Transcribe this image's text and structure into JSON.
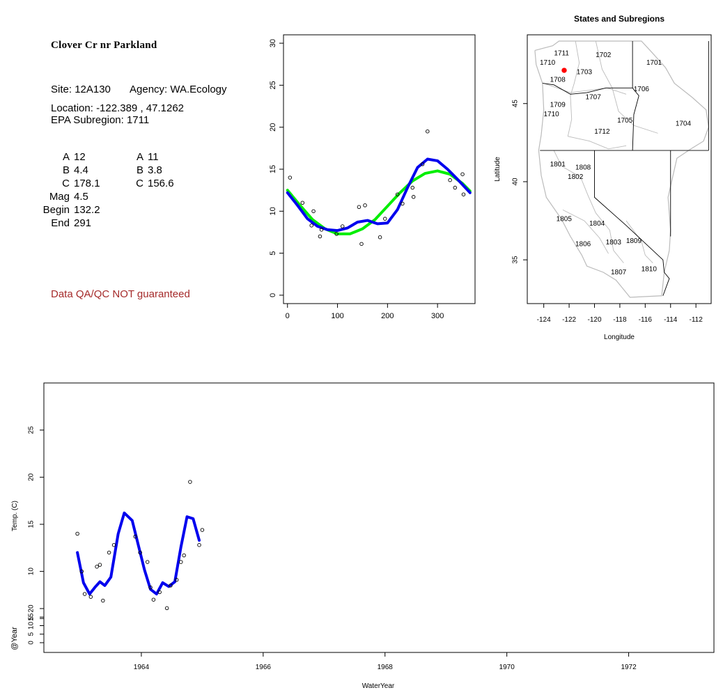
{
  "info": {
    "title": "Clover Cr nr Parkland",
    "site_label": "Site:",
    "site": "12A130",
    "agency_label": "Agency:",
    "agency": "WA.Ecology",
    "location_label": "Location:",
    "location": "-122.389 , 47.1262",
    "subregion_label": "EPA Subregion:",
    "subregion": "1711",
    "params_left": [
      {
        "key": "A",
        "value": "12"
      },
      {
        "key": "B",
        "value": "4.4"
      },
      {
        "key": "C",
        "value": "178.1"
      },
      {
        "key": "Mag",
        "value": "4.5"
      },
      {
        "key": "Begin",
        "value": "132.2"
      },
      {
        "key": "End",
        "value": "291"
      }
    ],
    "params_right": [
      {
        "key": "A",
        "value": "11"
      },
      {
        "key": "B",
        "value": "3.8"
      },
      {
        "key": "C",
        "value": "156.6"
      }
    ],
    "warning": "Data QA/QC NOT guaranteed"
  },
  "colors": {
    "green": "#00ee00",
    "blue": "#0000ee",
    "warning": "#a52a2a",
    "site_marker": "#ff0000",
    "boundary": "#bbbbbb"
  },
  "chart_data": [
    {
      "type": "scatter",
      "title": "",
      "xlabel": "",
      "ylabel": "",
      "xlim": [
        -8,
        375
      ],
      "ylim": [
        -1,
        31
      ],
      "xticks": [
        0,
        100,
        200,
        300
      ],
      "yticks": [
        0,
        5,
        10,
        15,
        20,
        25,
        30
      ],
      "points": [
        [
          5,
          14
        ],
        [
          30,
          11
        ],
        [
          48,
          8.3
        ],
        [
          52,
          10
        ],
        [
          65,
          7
        ],
        [
          68,
          7.8
        ],
        [
          98,
          7.3
        ],
        [
          110,
          8.2
        ],
        [
          143,
          10.5
        ],
        [
          148,
          6.1
        ],
        [
          155,
          10.7
        ],
        [
          185,
          6.9
        ],
        [
          195,
          9.1
        ],
        [
          220,
          12
        ],
        [
          230,
          10.9
        ],
        [
          250,
          12.8
        ],
        [
          252,
          11.7
        ],
        [
          270,
          15.6
        ],
        [
          280,
          19.5
        ],
        [
          325,
          13.7
        ],
        [
          335,
          12.8
        ],
        [
          350,
          14.4
        ],
        [
          352,
          12
        ]
      ],
      "series": [
        {
          "color": "#00ee00",
          "values": [
            [
              0,
              12.5
            ],
            [
              25,
              10.7
            ],
            [
              50,
              9
            ],
            [
              75,
              7.9
            ],
            [
              100,
              7.3
            ],
            [
              125,
              7.3
            ],
            [
              150,
              7.9
            ],
            [
              175,
              9
            ],
            [
              200,
              10.6
            ],
            [
              225,
              12.2
            ],
            [
              250,
              13.6
            ],
            [
              275,
              14.5
            ],
            [
              300,
              14.8
            ],
            [
              325,
              14.4
            ],
            [
              350,
              13.3
            ],
            [
              365,
              12.4
            ]
          ]
        },
        {
          "color": "#0000ee",
          "values": [
            [
              0,
              12.2
            ],
            [
              20,
              10.7
            ],
            [
              40,
              9.1
            ],
            [
              60,
              8.2
            ],
            [
              80,
              7.8
            ],
            [
              100,
              7.7
            ],
            [
              120,
              8
            ],
            [
              140,
              8.7
            ],
            [
              160,
              8.9
            ],
            [
              180,
              8.5
            ],
            [
              200,
              8.6
            ],
            [
              220,
              10.2
            ],
            [
              240,
              12.8
            ],
            [
              260,
              15.2
            ],
            [
              280,
              16.2
            ],
            [
              300,
              16
            ],
            [
              320,
              15
            ],
            [
              340,
              13.8
            ],
            [
              365,
              12.2
            ]
          ]
        }
      ]
    },
    {
      "type": "map",
      "title": "States and Subregions",
      "xlabel": "Longitude",
      "ylabel": "Latitude",
      "xlim": [
        -125.3,
        -110.8
      ],
      "ylim": [
        32.2,
        49.4
      ],
      "xticks": [
        -124,
        -122,
        -120,
        -118,
        -116,
        -114,
        -112
      ],
      "yticks": [
        35,
        40,
        45
      ],
      "site": [
        -122.389,
        47.1262
      ],
      "regions": [
        {
          "label": "1711",
          "lon": -122.6,
          "lat": 48.2
        },
        {
          "label": "1710",
          "lon": -123.7,
          "lat": 47.6
        },
        {
          "label": "1702",
          "lon": -119.3,
          "lat": 48.1
        },
        {
          "label": "1701",
          "lon": -115.3,
          "lat": 47.6
        },
        {
          "label": "1703",
          "lon": -120.8,
          "lat": 47.0
        },
        {
          "label": "1708",
          "lon": -122.9,
          "lat": 46.5
        },
        {
          "label": "1706",
          "lon": -116.3,
          "lat": 45.9
        },
        {
          "label": "1707",
          "lon": -120.1,
          "lat": 45.4
        },
        {
          "label": "1709",
          "lon": -122.9,
          "lat": 44.9
        },
        {
          "label": "1710",
          "lon": -123.4,
          "lat": 44.3
        },
        {
          "label": "1705",
          "lon": -117.6,
          "lat": 43.9
        },
        {
          "label": "1704",
          "lon": -113.0,
          "lat": 43.7
        },
        {
          "label": "1712",
          "lon": -119.4,
          "lat": 43.2
        },
        {
          "label": "1801",
          "lon": -122.9,
          "lat": 41.1
        },
        {
          "label": "1808",
          "lon": -120.9,
          "lat": 40.9
        },
        {
          "label": "1802",
          "lon": -121.5,
          "lat": 40.3
        },
        {
          "label": "1805",
          "lon": -122.4,
          "lat": 37.6
        },
        {
          "label": "1804",
          "lon": -119.8,
          "lat": 37.3
        },
        {
          "label": "1806",
          "lon": -120.9,
          "lat": 36.0
        },
        {
          "label": "1803",
          "lon": -118.5,
          "lat": 36.1
        },
        {
          "label": "1809",
          "lon": -116.9,
          "lat": 36.2
        },
        {
          "label": "1810",
          "lon": -115.7,
          "lat": 34.4
        },
        {
          "label": "1807",
          "lon": -118.1,
          "lat": 34.2
        }
      ]
    },
    {
      "type": "scatter",
      "title": "",
      "xlabel": "WaterYear",
      "ylabel": "Temp. (C)",
      "ylabel2": "@Year",
      "xlim": [
        1962.4,
        1973.4
      ],
      "ylim": [
        1.4,
        30
      ],
      "xticks": [
        1964,
        1966,
        1968,
        1970,
        1972
      ],
      "yticks": [
        5,
        10,
        15,
        20,
        25
      ],
      "yticks2": [
        0,
        5,
        10,
        15,
        20
      ],
      "points": [
        [
          1962.95,
          14
        ],
        [
          1963.02,
          10
        ],
        [
          1963.07,
          7.6
        ],
        [
          1963.17,
          7.3
        ],
        [
          1963.27,
          10.5
        ],
        [
          1963.32,
          10.7
        ],
        [
          1963.37,
          6.9
        ],
        [
          1963.47,
          12
        ],
        [
          1963.55,
          12.8
        ],
        [
          1963.9,
          13.7
        ],
        [
          1963.98,
          12
        ],
        [
          1964.1,
          11
        ],
        [
          1964.15,
          8.3
        ],
        [
          1964.2,
          7
        ],
        [
          1964.3,
          7.8
        ],
        [
          1964.42,
          6.1
        ],
        [
          1964.48,
          8.5
        ],
        [
          1964.58,
          9.1
        ],
        [
          1964.65,
          11
        ],
        [
          1964.7,
          11.7
        ],
        [
          1964.8,
          19.5
        ],
        [
          1964.95,
          12.8
        ],
        [
          1965,
          14.4
        ]
      ],
      "series": [
        {
          "color": "#0000ee",
          "values": [
            [
              1962.95,
              12
            ],
            [
              1963.05,
              8.8
            ],
            [
              1963.15,
              7.6
            ],
            [
              1963.25,
              8.4
            ],
            [
              1963.32,
              8.9
            ],
            [
              1963.4,
              8.5
            ],
            [
              1963.5,
              9.4
            ],
            [
              1963.62,
              14
            ],
            [
              1963.72,
              16.2
            ],
            [
              1963.85,
              15.4
            ],
            [
              1963.95,
              12.8
            ],
            [
              1964.05,
              10.2
            ],
            [
              1964.15,
              8.1
            ],
            [
              1964.25,
              7.6
            ],
            [
              1964.35,
              8.8
            ],
            [
              1964.45,
              8.4
            ],
            [
              1964.55,
              8.9
            ],
            [
              1964.65,
              12.6
            ],
            [
              1964.75,
              15.8
            ],
            [
              1964.85,
              15.6
            ],
            [
              1964.95,
              13.3
            ]
          ]
        }
      ]
    }
  ]
}
